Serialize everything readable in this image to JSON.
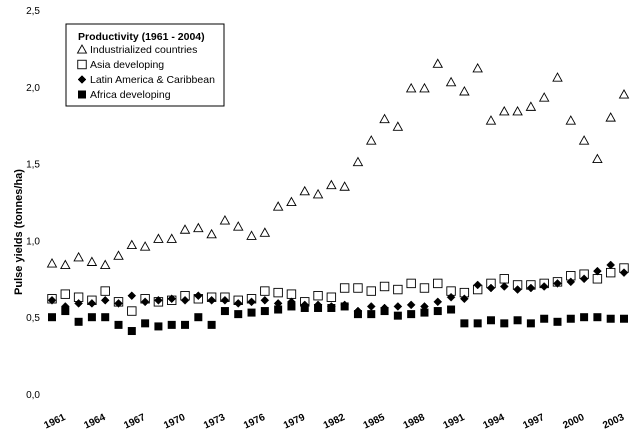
{
  "chart_data": {
    "type": "scatter",
    "legend_title": "Productivity (1961 - 2004)",
    "ylabel": "Pulse yields (tonnes/ha)",
    "xlabel": "",
    "ylim": [
      0,
      2.5
    ],
    "yticks": [
      "0,0",
      "0,5",
      "1,0",
      "1,5",
      "2,0",
      "2,5"
    ],
    "xlim": [
      1961,
      2004
    ],
    "xticks": [
      "1961",
      "1964",
      "1967",
      "1970",
      "1973",
      "1976",
      "1979",
      "1982",
      "1985",
      "1988",
      "1991",
      "1994",
      "1997",
      "2000",
      "2003"
    ],
    "legend_position": "top-left",
    "grid": false,
    "x": [
      1961,
      1962,
      1963,
      1964,
      1965,
      1966,
      1967,
      1968,
      1969,
      1970,
      1971,
      1972,
      1973,
      1974,
      1975,
      1976,
      1977,
      1978,
      1979,
      1980,
      1981,
      1982,
      1983,
      1984,
      1985,
      1986,
      1987,
      1988,
      1989,
      1990,
      1991,
      1992,
      1993,
      1994,
      1995,
      1996,
      1997,
      1998,
      1999,
      2000,
      2001,
      2002,
      2003,
      2004
    ],
    "series": [
      {
        "name": "Industrialized countries",
        "marker": "triangle-open",
        "values": [
          0.85,
          0.84,
          0.89,
          0.86,
          0.84,
          0.9,
          0.97,
          0.96,
          1.01,
          1.01,
          1.07,
          1.08,
          1.04,
          1.13,
          1.09,
          1.03,
          1.05,
          1.22,
          1.25,
          1.32,
          1.3,
          1.36,
          1.35,
          1.51,
          1.65,
          1.79,
          1.74,
          1.99,
          1.99,
          2.15,
          2.03,
          1.97,
          2.12,
          1.78,
          1.84,
          1.84,
          1.87,
          1.93,
          2.06,
          1.78,
          1.65,
          1.53,
          1.8,
          1.95
        ]
      },
      {
        "name": "Asia developing",
        "marker": "square-open",
        "values": [
          0.62,
          0.65,
          0.63,
          0.61,
          0.67,
          0.6,
          0.54,
          0.62,
          0.6,
          0.61,
          0.64,
          0.62,
          0.63,
          0.63,
          0.61,
          0.62,
          0.67,
          0.66,
          0.65,
          0.6,
          0.64,
          0.63,
          0.69,
          0.69,
          0.67,
          0.7,
          0.68,
          0.72,
          0.69,
          0.72,
          0.67,
          0.66,
          0.68,
          0.72,
          0.75,
          0.71,
          0.71,
          0.72,
          0.73,
          0.77,
          0.78,
          0.75,
          0.79,
          0.82
        ]
      },
      {
        "name": "Latin America & Caribbean",
        "marker": "diamond-filled",
        "values": [
          0.61,
          0.57,
          0.59,
          0.59,
          0.61,
          0.59,
          0.64,
          0.6,
          0.61,
          0.62,
          0.61,
          0.64,
          0.61,
          0.61,
          0.59,
          0.6,
          0.61,
          0.59,
          0.6,
          0.58,
          0.58,
          0.57,
          0.58,
          0.54,
          0.57,
          0.56,
          0.57,
          0.58,
          0.57,
          0.6,
          0.63,
          0.62,
          0.71,
          0.69,
          0.7,
          0.68,
          0.69,
          0.7,
          0.72,
          0.73,
          0.75,
          0.8,
          0.84,
          0.79
        ]
      },
      {
        "name": "Africa developing",
        "marker": "square-filled",
        "values": [
          0.5,
          0.54,
          0.47,
          0.5,
          0.5,
          0.45,
          0.41,
          0.46,
          0.44,
          0.45,
          0.45,
          0.5,
          0.45,
          0.54,
          0.52,
          0.53,
          0.54,
          0.55,
          0.57,
          0.56,
          0.56,
          0.56,
          0.57,
          0.52,
          0.52,
          0.54,
          0.51,
          0.52,
          0.53,
          0.54,
          0.55,
          0.46,
          0.46,
          0.48,
          0.46,
          0.48,
          0.46,
          0.49,
          0.47,
          0.49,
          0.5,
          0.5,
          0.49,
          0.49
        ]
      }
    ]
  }
}
